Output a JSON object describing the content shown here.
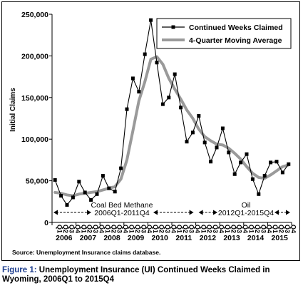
{
  "chart_data": {
    "type": "line",
    "ylabel": "Initial Claims",
    "ylim": [
      0,
      250000
    ],
    "y_ticks": [
      0,
      50000,
      100000,
      150000,
      200000,
      250000
    ],
    "y_tick_labels": [
      "0",
      "50,000",
      "100,000",
      "150,000",
      "200,000",
      "250,000"
    ],
    "quarter_labels": [
      "Q1",
      "Q2",
      "Q3",
      "Q4",
      "Q1",
      "Q2",
      "Q3",
      "Q4",
      "Q1",
      "Q2",
      "Q3",
      "Q4",
      "Q1",
      "Q2",
      "Q3",
      "Q4",
      "Q1",
      "Q2",
      "Q3",
      "Q4",
      "Q1",
      "Q2",
      "Q3",
      "Q4",
      "Q1",
      "Q2",
      "Q3",
      "Q4",
      "Q1",
      "Q2",
      "Q3",
      "Q4",
      "Q1",
      "Q2",
      "Q3",
      "Q4",
      "Q1",
      "Q2",
      "Q3",
      "Q4"
    ],
    "years": [
      "2006",
      "2007",
      "2008",
      "2009",
      "2010",
      "2011",
      "2012",
      "2013",
      "2014",
      "2015"
    ],
    "legend_position": "top-right",
    "grid": false,
    "series": [
      {
        "name": "Continued Weeks Claimed",
        "color": "#000000",
        "marker": "square",
        "values": [
          51000,
          32000,
          21000,
          30000,
          49000,
          36000,
          27000,
          34000,
          56000,
          41000,
          37000,
          65000,
          136000,
          173000,
          157000,
          202000,
          243000,
          192000,
          142000,
          150000,
          178000,
          138000,
          97000,
          108000,
          128000,
          96000,
          73000,
          90000,
          113000,
          84000,
          58000,
          72000,
          82000,
          52000,
          34000,
          56000,
          72000,
          73000,
          60000,
          70000
        ]
      },
      {
        "name": "4-Quarter Moving Average",
        "color": "#9a9a9a",
        "marker": "none",
        "values": [
          36000,
          35000,
          33000,
          32000,
          34000,
          35000,
          36000,
          37000,
          39000,
          41000,
          43000,
          52000,
          75000,
          110000,
          146000,
          169000,
          196000,
          199000,
          190000,
          173000,
          160000,
          148000,
          135000,
          125000,
          112000,
          103000,
          98000,
          94000,
          93000,
          89000,
          83000,
          76000,
          67000,
          59000,
          54000,
          53000,
          57000,
          62000,
          67000,
          69000
        ]
      }
    ],
    "annotations": {
      "coal": {
        "line1": "Coal Bed  Methane",
        "line2": "2006Q1-2011Q4",
        "range": [
          0,
          23
        ]
      },
      "oil": {
        "line1": "Oil",
        "line2": "2012Q1-2015Q4",
        "range": [
          24,
          39
        ]
      }
    },
    "source": "Source: Unemployment Insurance claims database."
  },
  "caption": {
    "figure_label": "Figure 1:",
    "text": "Unemployment Insurance (UI) Continued Weeks Claimed in Wyoming, 2006Q1 to 2015Q4"
  }
}
